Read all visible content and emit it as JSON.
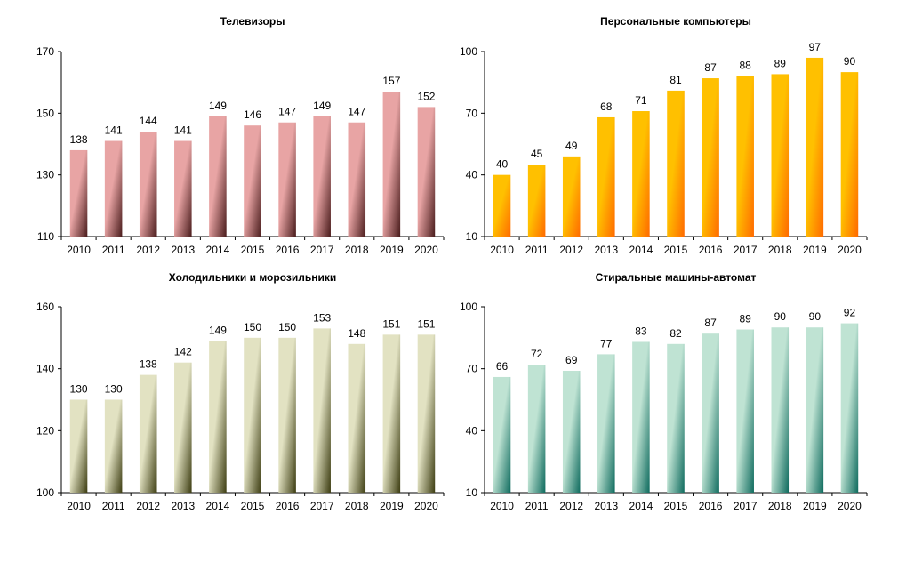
{
  "chart_data": [
    {
      "type": "bar",
      "title": "Телевизоры",
      "categories": [
        "2010",
        "2011",
        "2012",
        "2013",
        "2014",
        "2015",
        "2016",
        "2017",
        "2018",
        "2019",
        "2020"
      ],
      "values": [
        138,
        141,
        144,
        141,
        149,
        146,
        147,
        149,
        147,
        157,
        152
      ],
      "ylim": [
        110,
        170
      ],
      "yticks": [
        110,
        130,
        150,
        170
      ],
      "grid": false,
      "colors": [
        "#e8a4a4",
        "#4a1c1c"
      ]
    },
    {
      "type": "bar",
      "title": "Персональные компьютеры",
      "categories": [
        "2010",
        "2011",
        "2012",
        "2013",
        "2014",
        "2015",
        "2016",
        "2017",
        "2018",
        "2019",
        "2020"
      ],
      "values": [
        40,
        45,
        49,
        68,
        71,
        81,
        87,
        88,
        89,
        97,
        90
      ],
      "ylim": [
        10,
        100
      ],
      "yticks": [
        10,
        40,
        70,
        100
      ],
      "grid": false,
      "colors": [
        "#ffc000",
        "#ff6a00"
      ]
    },
    {
      "type": "bar",
      "title": "Холодильники и морозильники",
      "categories": [
        "2010",
        "2011",
        "2012",
        "2013",
        "2014",
        "2015",
        "2016",
        "2017",
        "2018",
        "2019",
        "2020"
      ],
      "values": [
        130,
        130,
        138,
        142,
        149,
        150,
        150,
        153,
        148,
        151,
        151
      ],
      "ylim": [
        100,
        160
      ],
      "yticks": [
        100,
        120,
        140,
        160
      ],
      "grid": false,
      "colors": [
        "#e2e2c2",
        "#3d3d12"
      ]
    },
    {
      "type": "bar",
      "title": "Стиральные машины-автомат",
      "categories": [
        "2010",
        "2011",
        "2012",
        "2013",
        "2014",
        "2015",
        "2016",
        "2017",
        "2018",
        "2019",
        "2020"
      ],
      "values": [
        66,
        72,
        69,
        77,
        83,
        82,
        87,
        89,
        90,
        90,
        92
      ],
      "ylim": [
        10,
        100
      ],
      "yticks": [
        10,
        40,
        70,
        100
      ],
      "grid": false,
      "colors": [
        "#bfe3d3",
        "#0f6b5e"
      ]
    }
  ]
}
